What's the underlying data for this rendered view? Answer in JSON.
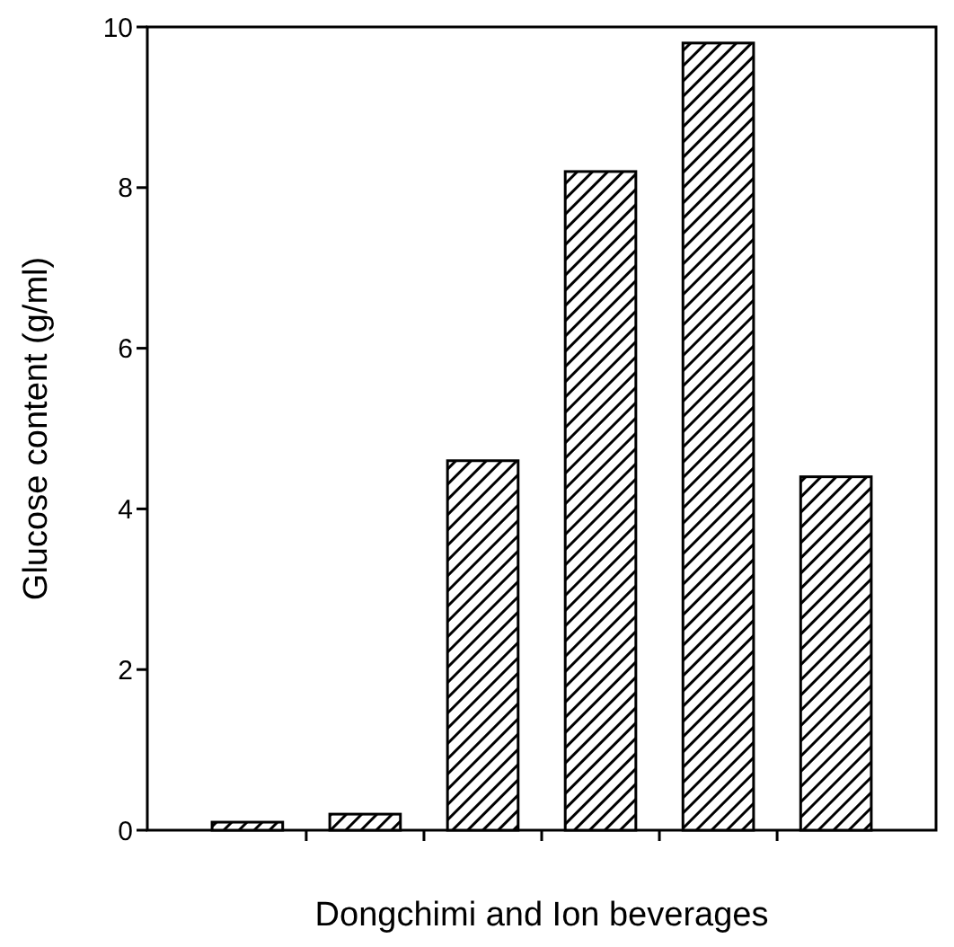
{
  "chart_data": {
    "type": "bar",
    "xlabel": "Dongchimi and Ion beverages",
    "ylabel": "Glucose content (g/ml)",
    "categories": [
      null,
      null,
      null,
      null,
      null,
      null
    ],
    "values": [
      0.1,
      0.2,
      4.6,
      8.2,
      9.8,
      4.4
    ],
    "color": "#000000",
    "ylim": [
      0,
      10
    ],
    "yticks": [
      0,
      2,
      4,
      6,
      8,
      10
    ],
    "grid": false
  }
}
